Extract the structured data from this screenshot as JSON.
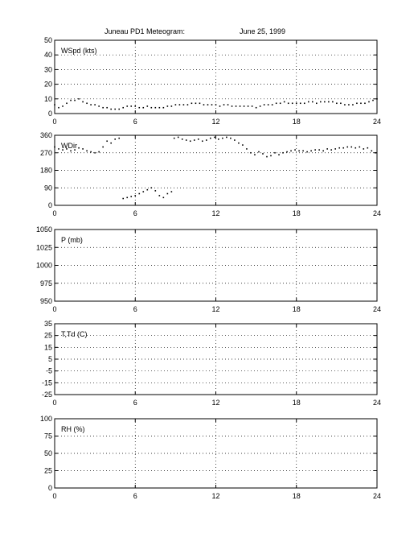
{
  "figure": {
    "title_station": "Juneau PD1 Meteogram:",
    "title_date": "June 25, 1999"
  },
  "chart_data": [
    {
      "type": "scatter",
      "ylabel": "WSpd (kts)",
      "xlim": [
        0,
        24
      ],
      "ylim": [
        0,
        50
      ],
      "xticks": [
        0,
        6,
        12,
        18,
        24
      ],
      "yticks": [
        0,
        10,
        20,
        30,
        40,
        50
      ],
      "grid": true,
      "series": [
        {
          "x": [
            0.0,
            0.3,
            0.6,
            0.9,
            1.2,
            1.5,
            1.8,
            2.1,
            2.4,
            2.7,
            3.0,
            3.3,
            3.6,
            3.9,
            4.2,
            4.5,
            4.8,
            5.1,
            5.4,
            5.7,
            6.0,
            6.3,
            6.6,
            6.9,
            7.2,
            7.5,
            7.8,
            8.1,
            8.4,
            8.7,
            9.0,
            9.3,
            9.6,
            9.9,
            10.2,
            10.5,
            10.8,
            11.1,
            11.4,
            11.7,
            12.0,
            12.3,
            12.6,
            12.9,
            13.2,
            13.5,
            13.8,
            14.1,
            14.4,
            14.7,
            15.0,
            15.3,
            15.6,
            15.9,
            16.2,
            16.5,
            16.8,
            17.1,
            17.4,
            17.7,
            18.0,
            18.3,
            18.6,
            18.9,
            19.2,
            19.5,
            19.8,
            20.1,
            20.4,
            20.7,
            21.0,
            21.3,
            21.6,
            21.9,
            22.2,
            22.5,
            22.8,
            23.1,
            23.4,
            23.7,
            24.0
          ],
          "values": [
            6,
            4,
            5,
            7,
            9,
            9,
            10,
            8,
            7,
            6,
            6,
            5,
            4,
            4,
            3,
            3,
            3,
            4,
            5,
            5,
            5,
            4,
            4,
            5,
            4,
            4,
            4,
            4,
            5,
            5,
            6,
            6,
            6,
            6,
            7,
            7,
            7,
            6,
            6,
            6,
            6,
            5,
            6,
            6,
            5,
            5,
            5,
            5,
            5,
            5,
            4,
            5,
            6,
            6,
            6,
            7,
            7,
            8,
            7,
            7,
            7,
            7,
            7,
            8,
            8,
            7,
            8,
            8,
            8,
            8,
            7,
            7,
            6,
            6,
            6,
            7,
            7,
            7,
            8,
            9,
            10
          ]
        }
      ]
    },
    {
      "type": "scatter",
      "ylabel": "WDir",
      "xlim": [
        0,
        24
      ],
      "ylim": [
        0,
        360
      ],
      "xticks": [
        0,
        6,
        12,
        18,
        24
      ],
      "yticks": [
        0,
        90,
        180,
        270,
        360
      ],
      "grid": true,
      "series": [
        {
          "x": [
            0.0,
            0.3,
            0.6,
            0.9,
            1.2,
            1.5,
            1.8,
            2.1,
            2.4,
            2.7,
            3.0,
            3.3,
            3.6,
            3.9,
            4.2,
            4.5,
            4.8,
            5.1,
            5.4,
            5.7,
            6.0,
            6.3,
            6.6,
            6.9,
            7.2,
            7.5,
            7.8,
            8.1,
            8.4,
            8.7,
            8.9,
            9.2,
            9.5,
            9.8,
            10.1,
            10.4,
            10.7,
            11.0,
            11.3,
            11.6,
            11.9,
            12.2,
            12.5,
            12.8,
            13.1,
            13.4,
            13.7,
            14.0,
            14.3,
            14.6,
            14.9,
            15.2,
            15.5,
            15.8,
            16.1,
            16.4,
            16.7,
            17.0,
            17.3,
            17.6,
            17.9,
            18.2,
            18.5,
            18.8,
            19.1,
            19.4,
            19.7,
            20.0,
            20.3,
            20.6,
            20.9,
            21.2,
            21.5,
            21.8,
            22.1,
            22.4,
            22.7,
            23.0,
            23.3,
            23.6,
            23.9
          ],
          "values": [
            300,
            290,
            285,
            290,
            280,
            285,
            295,
            290,
            280,
            275,
            270,
            275,
            300,
            330,
            320,
            340,
            345,
            35,
            40,
            45,
            50,
            60,
            70,
            80,
            90,
            75,
            50,
            40,
            60,
            70,
            345,
            350,
            340,
            335,
            330,
            335,
            340,
            330,
            335,
            345,
            350,
            340,
            345,
            350,
            345,
            335,
            320,
            310,
            290,
            270,
            260,
            275,
            265,
            250,
            255,
            270,
            260,
            270,
            275,
            280,
            285,
            280,
            280,
            275,
            280,
            285,
            285,
            280,
            290,
            285,
            290,
            295,
            295,
            300,
            300,
            295,
            300,
            290,
            295,
            280,
            270
          ]
        }
      ]
    },
    {
      "type": "line",
      "ylabel": "P (mb)",
      "xlim": [
        0,
        24
      ],
      "ylim": [
        950,
        1050
      ],
      "xticks": [
        0,
        6,
        12,
        18,
        24
      ],
      "yticks": [
        950,
        975,
        1000,
        1025,
        1050
      ],
      "grid": true,
      "series": []
    },
    {
      "type": "line",
      "ylabel": "T,Td (C)",
      "xlim": [
        0,
        24
      ],
      "ylim": [
        -25,
        35
      ],
      "xticks": [
        0,
        6,
        12,
        18,
        24
      ],
      "yticks": [
        -25,
        -15,
        -5,
        5,
        15,
        25,
        35
      ],
      "grid": true,
      "series": []
    },
    {
      "type": "line",
      "ylabel": "RH (%)",
      "xlim": [
        0,
        24
      ],
      "ylim": [
        0,
        100
      ],
      "xticks": [
        0,
        6,
        12,
        18,
        24
      ],
      "yticks": [
        0,
        25,
        50,
        75,
        100
      ],
      "grid": true,
      "series": []
    }
  ]
}
